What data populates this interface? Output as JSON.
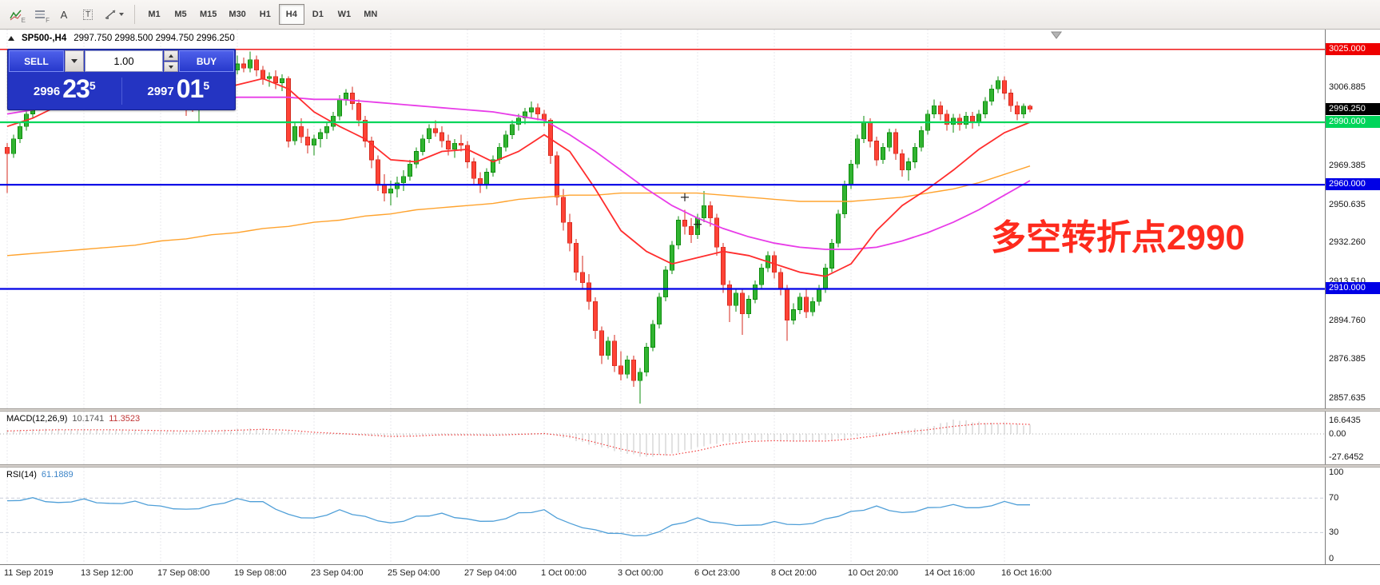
{
  "toolbar": {
    "indicator_sub": "E",
    "grid_sub": "F",
    "text_tool_label": "A",
    "label_tool_label": "T",
    "timeframes": [
      "M1",
      "M5",
      "M15",
      "M30",
      "H1",
      "H4",
      "D1",
      "W1",
      "MN"
    ],
    "active_timeframe": "H4"
  },
  "chart": {
    "title": "SP500-,H4",
    "ohlc_readout": "2997.750 2998.500 2994.750 2996.250",
    "annotation": "多空转折点2990",
    "trade_panel": {
      "sell_label": "SELL",
      "buy_label": "BUY",
      "volume": "1.00",
      "sell_price": {
        "prefix": "2996",
        "big": "23",
        "sup": "5"
      },
      "buy_price": {
        "prefix": "2997",
        "big": "01",
        "sup": "5"
      }
    },
    "hlines": [
      {
        "price": 3025.0,
        "label": "3025.000",
        "color": "#ee0000",
        "lw": 1.4
      },
      {
        "price": 2990.0,
        "label": "2990.000",
        "color": "#00d55a",
        "lw": 2.2
      },
      {
        "price": 2960.0,
        "label": "2960.000",
        "color": "#0000e6",
        "lw": 2.2
      },
      {
        "price": 2910.0,
        "label": "2910.000",
        "color": "#0000e6",
        "lw": 2.2
      }
    ],
    "current_price": {
      "price": 2996.25,
      "label": "2996.250",
      "bg": "#000000"
    },
    "axis_ticks": [
      3006.885,
      2969.385,
      2950.635,
      2932.26,
      2913.51,
      2894.76,
      2876.385,
      2857.635
    ],
    "crosses": [
      {
        "idx": 106,
        "price": 2954
      },
      {
        "idx": 108,
        "price": 2941
      }
    ]
  },
  "chart_data": {
    "type": "candlestick",
    "symbol": "SP500-",
    "timeframe": "H4",
    "colors": {
      "candle_up": "#31b431",
      "candle_up_edge": "#0c8c0c",
      "candle_down": "#ff4336",
      "candle_down_edge": "#d42a1e",
      "ma_fast": "#ff2d2d",
      "ma_slow": "#e83ce8",
      "ma_mid": "#ffa32e",
      "macd_signal": "#f23c3c",
      "macd_hist": "#c6c6c6",
      "rsi_line": "#4f9fd8"
    },
    "candles": [
      [
        2978,
        2980,
        2956,
        2975
      ],
      [
        2975,
        2984,
        2973,
        2982
      ],
      [
        2982,
        2990,
        2980,
        2988
      ],
      [
        2988,
        2996,
        2986,
        2994
      ],
      [
        2994,
        3001,
        2992,
        2999
      ],
      [
        2999,
        3006,
        2997,
        3004
      ],
      [
        3004,
        3010,
        3002,
        3008
      ],
      [
        3008,
        3010,
        3004,
        3006
      ],
      [
        3006,
        3008,
        3001,
        3003
      ],
      [
        3003,
        3009,
        3001,
        3007
      ],
      [
        3007,
        3009,
        3002,
        3004
      ],
      [
        3004,
        3008,
        3002,
        3006
      ],
      [
        3006,
        3008,
        3003,
        3005
      ],
      [
        3005,
        3010,
        3003,
        3008
      ],
      [
        3008,
        3010,
        3004,
        3006
      ],
      [
        3006,
        3011,
        3004,
        3009
      ],
      [
        3009,
        3011,
        3005,
        3007
      ],
      [
        3007,
        3012,
        3005,
        3010
      ],
      [
        3010,
        3012,
        3007,
        3010
      ],
      [
        3010,
        3011,
        3005,
        3007
      ],
      [
        3007,
        3011,
        3005,
        3009
      ],
      [
        3009,
        3011,
        3004,
        3006
      ],
      [
        3006,
        3011,
        3004,
        3009
      ],
      [
        3009,
        3011,
        3005,
        3007
      ],
      [
        3007,
        3010,
        3005,
        3008
      ],
      [
        3008,
        3010,
        3003,
        3005
      ],
      [
        3005,
        3007,
        3000,
        3002
      ],
      [
        3002,
        3006,
        3000,
        3004
      ],
      [
        3004,
        3006,
        2993,
        3001
      ],
      [
        3001,
        3003,
        2995,
        2999
      ],
      [
        2999,
        3002,
        2990,
        3000
      ],
      [
        3000,
        3006,
        2998,
        3004
      ],
      [
        3004,
        3009,
        3002,
        3007
      ],
      [
        3007,
        3012,
        3005,
        3010
      ],
      [
        3010,
        3014,
        3008,
        3012
      ],
      [
        3012,
        3017,
        3010,
        3015
      ],
      [
        3015,
        3022,
        3013,
        3018
      ],
      [
        3018,
        3021,
        3014,
        3016
      ],
      [
        3016,
        3024,
        3014,
        3020
      ],
      [
        3020,
        3022,
        3012,
        3015
      ],
      [
        3015,
        3017,
        3008,
        3011
      ],
      [
        3011,
        3014,
        3007,
        3012
      ],
      [
        3012,
        3015,
        3006,
        3009
      ],
      [
        3009,
        3013,
        3005,
        3011
      ],
      [
        3011,
        3012,
        2978,
        2981
      ],
      [
        2981,
        2990,
        2979,
        2988
      ],
      [
        2988,
        2992,
        2980,
        2983
      ],
      [
        2983,
        2987,
        2975,
        2979
      ],
      [
        2979,
        2984,
        2974,
        2982
      ],
      [
        2982,
        2987,
        2978,
        2985
      ],
      [
        2985,
        2990,
        2982,
        2988
      ],
      [
        2988,
        2995,
        2986,
        2993
      ],
      [
        2993,
        3003,
        2991,
        3001
      ],
      [
        3001,
        3006,
        2998,
        3004
      ],
      [
        3004,
        3007,
        2996,
        2999
      ],
      [
        2999,
        3001,
        2988,
        2991
      ],
      [
        2991,
        2993,
        2978,
        2981
      ],
      [
        2981,
        2983,
        2968,
        2972
      ],
      [
        2972,
        2974,
        2957,
        2960
      ],
      [
        2960,
        2965,
        2952,
        2956
      ],
      [
        2956,
        2962,
        2950,
        2958
      ],
      [
        2958,
        2964,
        2954,
        2961
      ],
      [
        2961,
        2967,
        2957,
        2964
      ],
      [
        2964,
        2972,
        2962,
        2970
      ],
      [
        2970,
        2978,
        2968,
        2976
      ],
      [
        2976,
        2984,
        2974,
        2982
      ],
      [
        2982,
        2989,
        2980,
        2987
      ],
      [
        2987,
        2991,
        2983,
        2985
      ],
      [
        2985,
        2988,
        2978,
        2981
      ],
      [
        2981,
        2984,
        2974,
        2977
      ],
      [
        2977,
        2982,
        2973,
        2980
      ],
      [
        2980,
        2984,
        2976,
        2979
      ],
      [
        2979,
        2981,
        2968,
        2971
      ],
      [
        2971,
        2973,
        2960,
        2963
      ],
      [
        2963,
        2966,
        2956,
        2960
      ],
      [
        2960,
        2968,
        2958,
        2966
      ],
      [
        2966,
        2974,
        2964,
        2972
      ],
      [
        2972,
        2980,
        2970,
        2978
      ],
      [
        2978,
        2986,
        2976,
        2984
      ],
      [
        2984,
        2991,
        2982,
        2989
      ],
      [
        2989,
        2994,
        2986,
        2992
      ],
      [
        2992,
        2997,
        2989,
        2995
      ],
      [
        2995,
        3000,
        2992,
        2997
      ],
      [
        2997,
        2999,
        2991,
        2994
      ],
      [
        2994,
        2996,
        2988,
        2991
      ],
      [
        2991,
        2992,
        2970,
        2974
      ],
      [
        2974,
        2976,
        2950,
        2954
      ],
      [
        2954,
        2958,
        2938,
        2942
      ],
      [
        2942,
        2946,
        2928,
        2932
      ],
      [
        2932,
        2934,
        2914,
        2918
      ],
      [
        2918,
        2926,
        2910,
        2913
      ],
      [
        2913,
        2917,
        2900,
        2904
      ],
      [
        2904,
        2906,
        2886,
        2890
      ],
      [
        2890,
        2892,
        2874,
        2878
      ],
      [
        2878,
        2887,
        2876,
        2885
      ],
      [
        2885,
        2888,
        2870,
        2873
      ],
      [
        2873,
        2880,
        2866,
        2869
      ],
      [
        2869,
        2878,
        2867,
        2876
      ],
      [
        2876,
        2878,
        2863,
        2866
      ],
      [
        2866,
        2872,
        2855,
        2870
      ],
      [
        2870,
        2884,
        2868,
        2882
      ],
      [
        2882,
        2895,
        2880,
        2893
      ],
      [
        2893,
        2908,
        2891,
        2906
      ],
      [
        2906,
        2921,
        2904,
        2919
      ],
      [
        2919,
        2933,
        2917,
        2931
      ],
      [
        2931,
        2945,
        2929,
        2943
      ],
      [
        2943,
        2948,
        2936,
        2940
      ],
      [
        2940,
        2944,
        2932,
        2936
      ],
      [
        2936,
        2946,
        2934,
        2944
      ],
      [
        2944,
        2957,
        2942,
        2950
      ],
      [
        2950,
        2952,
        2940,
        2944
      ],
      [
        2944,
        2946,
        2926,
        2930
      ],
      [
        2930,
        2932,
        2908,
        2912
      ],
      [
        2912,
        2914,
        2894,
        2902
      ],
      [
        2902,
        2910,
        2899,
        2908
      ],
      [
        2908,
        2910,
        2888,
        2898
      ],
      [
        2898,
        2907,
        2896,
        2905
      ],
      [
        2905,
        2914,
        2903,
        2912
      ],
      [
        2912,
        2922,
        2910,
        2920
      ],
      [
        2920,
        2928,
        2918,
        2926
      ],
      [
        2926,
        2928,
        2915,
        2918
      ],
      [
        2918,
        2920,
        2907,
        2910
      ],
      [
        2910,
        2912,
        2885,
        2895
      ],
      [
        2895,
        2903,
        2893,
        2900
      ],
      [
        2900,
        2908,
        2898,
        2906
      ],
      [
        2906,
        2910,
        2896,
        2899
      ],
      [
        2899,
        2906,
        2897,
        2904
      ],
      [
        2904,
        2912,
        2902,
        2910
      ],
      [
        2910,
        2922,
        2908,
        2920
      ],
      [
        2920,
        2934,
        2918,
        2932
      ],
      [
        2932,
        2948,
        2930,
        2946
      ],
      [
        2946,
        2962,
        2944,
        2960
      ],
      [
        2960,
        2972,
        2958,
        2970
      ],
      [
        2970,
        2984,
        2968,
        2982
      ],
      [
        2982,
        2993,
        2980,
        2990
      ],
      [
        2990,
        2992,
        2978,
        2981
      ],
      [
        2981,
        2983,
        2969,
        2972
      ],
      [
        2972,
        2980,
        2970,
        2978
      ],
      [
        2978,
        2987,
        2976,
        2985
      ],
      [
        2985,
        2987,
        2972,
        2975
      ],
      [
        2975,
        2977,
        2964,
        2967
      ],
      [
        2967,
        2973,
        2962,
        2971
      ],
      [
        2971,
        2980,
        2968,
        2978
      ],
      [
        2978,
        2988,
        2976,
        2986
      ],
      [
        2986,
        2996,
        2984,
        2994
      ],
      [
        2994,
        3001,
        2992,
        2998
      ],
      [
        2998,
        3000,
        2991,
        2994
      ],
      [
        2994,
        2996,
        2986,
        2989
      ],
      [
        2989,
        2994,
        2985,
        2992
      ],
      [
        2992,
        2994,
        2986,
        2989
      ],
      [
        2989,
        2995,
        2987,
        2993
      ],
      [
        2993,
        2995,
        2987,
        2990
      ],
      [
        2990,
        2996,
        2988,
        2994
      ],
      [
        2994,
        3002,
        2992,
        3000
      ],
      [
        3000,
        3008,
        2998,
        3006
      ],
      [
        3006,
        3012,
        3004,
        3010
      ],
      [
        3010,
        3012,
        3001,
        3004
      ],
      [
        3004,
        3006,
        2995,
        2998
      ],
      [
        2998,
        3000,
        2991,
        2994
      ],
      [
        2994,
        2999,
        2992,
        2997.75
      ],
      [
        2997.75,
        2998.5,
        2994.75,
        2996.25
      ]
    ],
    "ma_slow_magenta": {
      "start": 0,
      "step": 4,
      "values": [
        2994,
        2996,
        2997,
        2998,
        2999,
        3000,
        3000,
        3001,
        3001,
        3002,
        3002,
        3002,
        3001,
        3001,
        3000,
        2999,
        2998,
        2997,
        2996,
        2995,
        2993,
        2991,
        2984,
        2976,
        2967,
        2958,
        2950,
        2944,
        2939,
        2935,
        2932,
        2930,
        2929,
        2929,
        2930,
        2933,
        2937,
        2942,
        2948,
        2955,
        2962
      ]
    },
    "ma_mid_orange": {
      "start": 0,
      "step": 4,
      "values": [
        2926,
        2927,
        2928,
        2929,
        2930,
        2931,
        2933,
        2934,
        2936,
        2937,
        2939,
        2940,
        2942,
        2943,
        2945,
        2946,
        2948,
        2949,
        2950,
        2951,
        2953,
        2954,
        2955,
        2955,
        2956,
        2956,
        2956,
        2956,
        2955,
        2954,
        2953,
        2952,
        2952,
        2952,
        2953,
        2954,
        2956,
        2958,
        2961,
        2965,
        2969
      ]
    },
    "ma_fast_red": {
      "start": 0,
      "step": 4,
      "values": [
        2988,
        2992,
        2998,
        3002,
        3005,
        3006,
        3007,
        3006,
        3005,
        3008,
        3011,
        3006,
        2995,
        2988,
        2982,
        2972,
        2971,
        2976,
        2977,
        2971,
        2976,
        2984,
        2976,
        2958,
        2938,
        2928,
        2922,
        2925,
        2928,
        2926,
        2922,
        2918,
        2916,
        2922,
        2938,
        2950,
        2958,
        2967,
        2977,
        2985,
        2990
      ]
    },
    "macd": {
      "label": "MACD(12,26,9)",
      "main_value": "10.1741",
      "signal_value": "11.3523",
      "axis_labels": [
        {
          "v": 16.6435,
          "label": "16.6435"
        },
        {
          "v": 0,
          "label": "0.00"
        },
        {
          "v": -27.6452,
          "label": "-27.6452"
        }
      ],
      "main": {
        "start": 0,
        "step": 4,
        "values": [
          4,
          5,
          5.5,
          5,
          5,
          4.5,
          4,
          3.5,
          4,
          5.5,
          6,
          3,
          0,
          1,
          -2,
          -4,
          -2,
          0,
          -1,
          -2,
          0,
          1,
          -6,
          -14,
          -22,
          -27.6452,
          -24,
          -16,
          -10,
          -8,
          -8,
          -9,
          -8,
          -4,
          1,
          4,
          8,
          16.6435,
          14,
          12,
          10.1741
        ]
      },
      "signal": {
        "start": 0,
        "step": 4,
        "values": [
          3.5,
          4.5,
          5,
          5,
          5,
          4.5,
          4,
          3.5,
          3.5,
          4.5,
          5.5,
          4.5,
          2,
          0.5,
          -1,
          -3,
          -2.5,
          -1,
          -1,
          -1.5,
          -0.5,
          0.5,
          -3,
          -10,
          -18,
          -24,
          -25,
          -20,
          -13,
          -9,
          -8,
          -8.5,
          -8.5,
          -6,
          -2,
          2,
          5,
          9,
          12,
          12.5,
          11.3523
        ]
      }
    },
    "rsi": {
      "label": "RSI(14)",
      "value": "61.1889",
      "levels": [
        100,
        70,
        30,
        0
      ],
      "dashed_levels": [
        70,
        30
      ],
      "points": {
        "start": 0,
        "step": 4,
        "values": [
          66,
          70,
          64,
          68,
          63,
          66,
          60,
          56,
          61,
          69,
          65,
          50,
          46,
          56,
          48,
          40,
          48,
          52,
          45,
          42,
          52,
          56,
          40,
          32,
          28,
          26,
          38,
          46,
          40,
          38,
          42,
          38,
          45,
          54,
          60,
          52,
          58,
          62,
          58,
          65,
          61.1889
        ]
      }
    },
    "time_labels": [
      {
        "idx": 0,
        "text": "11 Sep 2019"
      },
      {
        "idx": 12,
        "text": "13 Sep 12:00"
      },
      {
        "idx": 24,
        "text": "17 Sep 08:00"
      },
      {
        "idx": 36,
        "text": "19 Sep 08:00"
      },
      {
        "idx": 48,
        "text": "23 Sep 04:00"
      },
      {
        "idx": 60,
        "text": "25 Sep 04:00"
      },
      {
        "idx": 72,
        "text": "27 Sep 04:00"
      },
      {
        "idx": 84,
        "text": "1 Oct 00:00"
      },
      {
        "idx": 96,
        "text": "3 Oct 00:00"
      },
      {
        "idx": 108,
        "text": "6 Oct 23:00"
      },
      {
        "idx": 120,
        "text": "8 Oct 20:00"
      },
      {
        "idx": 132,
        "text": "10 Oct 20:00"
      },
      {
        "idx": 144,
        "text": "14 Oct 16:00"
      },
      {
        "idx": 156,
        "text": "16 Oct 16:00"
      }
    ]
  }
}
